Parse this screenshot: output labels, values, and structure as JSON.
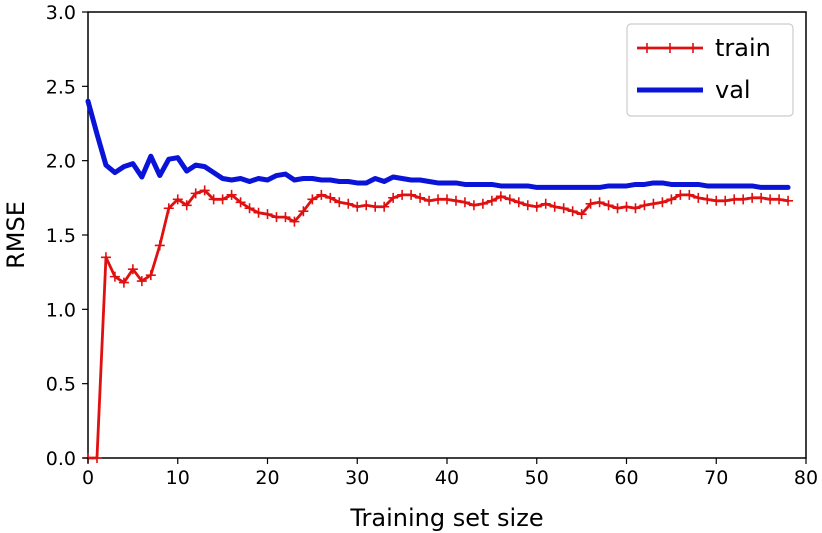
{
  "chart_data": {
    "type": "line",
    "xlabel": "Training set size",
    "ylabel": "RMSE",
    "xlim": [
      0,
      80
    ],
    "ylim": [
      0.0,
      3.0
    ],
    "xticks": [
      0,
      10,
      20,
      30,
      40,
      50,
      60,
      70,
      80
    ],
    "yticks": [
      0.0,
      0.5,
      1.0,
      1.5,
      2.0,
      2.5,
      3.0
    ],
    "grid": false,
    "legend_position": "top-right",
    "series": [
      {
        "name": "train",
        "color": "#e01010",
        "marker": "plus",
        "values": [
          0.0,
          0.0,
          1.35,
          1.22,
          1.18,
          1.27,
          1.19,
          1.23,
          1.43,
          1.68,
          1.74,
          1.7,
          1.78,
          1.8,
          1.74,
          1.74,
          1.77,
          1.72,
          1.68,
          1.65,
          1.64,
          1.62,
          1.62,
          1.59,
          1.66,
          1.74,
          1.77,
          1.75,
          1.72,
          1.71,
          1.69,
          1.7,
          1.69,
          1.69,
          1.75,
          1.77,
          1.77,
          1.75,
          1.73,
          1.74,
          1.74,
          1.73,
          1.72,
          1.7,
          1.71,
          1.73,
          1.76,
          1.74,
          1.72,
          1.7,
          1.69,
          1.71,
          1.69,
          1.68,
          1.66,
          1.64,
          1.71,
          1.72,
          1.7,
          1.68,
          1.69,
          1.68,
          1.7,
          1.71,
          1.72,
          1.74,
          1.77,
          1.77,
          1.75,
          1.74,
          1.73,
          1.73,
          1.74,
          1.74,
          1.75,
          1.75,
          1.74,
          1.74,
          1.73
        ]
      },
      {
        "name": "val",
        "color": "#0a14d8",
        "marker": "none",
        "values": [
          2.4,
          2.18,
          1.97,
          1.92,
          1.96,
          1.98,
          1.89,
          2.03,
          1.9,
          2.01,
          2.02,
          1.93,
          1.97,
          1.96,
          1.92,
          1.88,
          1.87,
          1.88,
          1.86,
          1.88,
          1.87,
          1.9,
          1.91,
          1.87,
          1.88,
          1.88,
          1.87,
          1.87,
          1.86,
          1.86,
          1.85,
          1.85,
          1.88,
          1.86,
          1.89,
          1.88,
          1.87,
          1.87,
          1.86,
          1.85,
          1.85,
          1.85,
          1.84,
          1.84,
          1.84,
          1.84,
          1.83,
          1.83,
          1.83,
          1.83,
          1.82,
          1.82,
          1.82,
          1.82,
          1.82,
          1.82,
          1.82,
          1.82,
          1.83,
          1.83,
          1.83,
          1.84,
          1.84,
          1.85,
          1.85,
          1.84,
          1.84,
          1.84,
          1.84,
          1.83,
          1.83,
          1.83,
          1.83,
          1.83,
          1.83,
          1.82,
          1.82,
          1.82,
          1.82
        ]
      }
    ]
  }
}
